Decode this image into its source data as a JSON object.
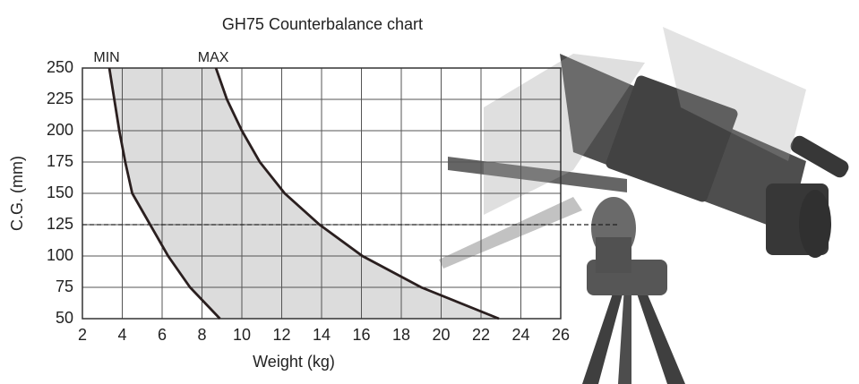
{
  "chart_data": {
    "type": "line",
    "title": "GH75 Counterbalance chart",
    "x_label": "Weight (kg)",
    "y_label": "C.G. (mm)",
    "xlim": [
      2,
      26
    ],
    "xticks": [
      2,
      4,
      6,
      8,
      10,
      12,
      14,
      16,
      18,
      20,
      22,
      24,
      26
    ],
    "ylim": [
      50,
      250
    ],
    "yticks": [
      50,
      75,
      100,
      125,
      150,
      175,
      200,
      225,
      250
    ],
    "grid": true,
    "fill_between": "#dcdcdc",
    "reference_line": 125,
    "series": [
      {
        "name": "MIN",
        "color": "#2a1f1f",
        "x": [
          3.35,
          3.6,
          3.85,
          4.15,
          4.5,
          5.4,
          6.3,
          7.4,
          8.9
        ],
        "values": [
          250,
          225,
          200,
          175,
          150,
          125,
          100,
          75,
          50
        ]
      },
      {
        "name": "MAX",
        "color": "#2a1f1f",
        "x": [
          8.7,
          9.25,
          10.0,
          10.9,
          12.15,
          13.9,
          16.05,
          19.0,
          22.9
        ],
        "values": [
          250,
          225,
          200,
          175,
          150,
          125,
          100,
          75,
          50
        ]
      }
    ]
  }
}
